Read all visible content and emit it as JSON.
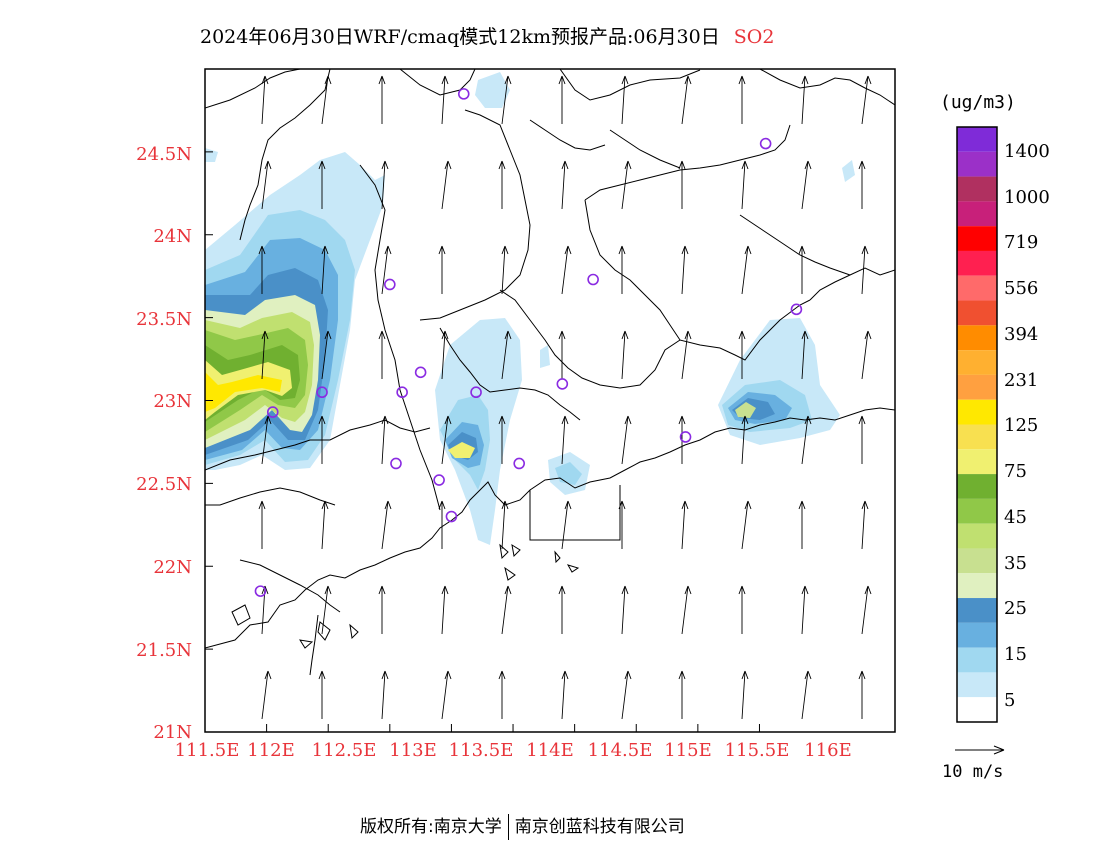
{
  "header": {
    "title": "2024年06月30日WRF/cmaq模式12km预报产品:06月30日",
    "species": "SO2",
    "species_color": "#e8343a"
  },
  "axes": {
    "y_ticks": [
      "24.5N",
      "24N",
      "23.5N",
      "23N",
      "22.5N",
      "22N",
      "21.5N",
      "21N"
    ],
    "x_ticks": [
      "111.5E",
      "112E",
      "112.5E",
      "113E",
      "113.5E",
      "114E",
      "114.5E",
      "115E",
      "115.5E",
      "116E"
    ],
    "label_color": "#e8343a",
    "lon_range": [
      111.5,
      117.1
    ],
    "lat_range": [
      21.0,
      25.0
    ]
  },
  "legend": {
    "unit": "(ug/m3)",
    "labels": [
      "1400",
      "1000",
      "719",
      "556",
      "394",
      "231",
      "125",
      "75",
      "45",
      "35",
      "25",
      "15",
      "5"
    ],
    "colors": [
      "#7f2bd8",
      "#9b30c8",
      "#b03060",
      "#c8207a",
      "#ff0000",
      "#ff2050",
      "#ff6a6a",
      "#f05030",
      "#ff8c00",
      "#ffb030",
      "#ffa040",
      "#ffe800",
      "#f8e050",
      "#f0f070",
      "#70b030",
      "#90c848",
      "#c0e070",
      "#c8e090",
      "#e0f0c0",
      "#4a90c8",
      "#68b0e0",
      "#a0d8f0",
      "#c8e8f8",
      "#ffffff"
    ]
  },
  "wind": {
    "reference_label": "10 m/s",
    "direction": "north"
  },
  "sites": [
    {
      "lon": 113.6,
      "lat": 24.85
    },
    {
      "lon": 116.05,
      "lat": 24.55
    },
    {
      "lon": 116.3,
      "lat": 23.55
    },
    {
      "lon": 114.65,
      "lat": 23.73
    },
    {
      "lon": 113.0,
      "lat": 23.7
    },
    {
      "lon": 112.45,
      "lat": 23.05
    },
    {
      "lon": 113.1,
      "lat": 23.05
    },
    {
      "lon": 113.25,
      "lat": 23.17
    },
    {
      "lon": 113.7,
      "lat": 23.05
    },
    {
      "lon": 114.4,
      "lat": 23.1
    },
    {
      "lon": 112.05,
      "lat": 22.93
    },
    {
      "lon": 113.05,
      "lat": 22.62
    },
    {
      "lon": 113.4,
      "lat": 22.52
    },
    {
      "lon": 114.05,
      "lat": 22.62
    },
    {
      "lon": 113.5,
      "lat": 22.3
    },
    {
      "lon": 115.4,
      "lat": 22.78
    },
    {
      "lon": 111.95,
      "lat": 21.85
    }
  ],
  "footer": {
    "copyright_left": "版权所有:南京大学",
    "copyright_right": "南京创蓝科技有限公司"
  }
}
